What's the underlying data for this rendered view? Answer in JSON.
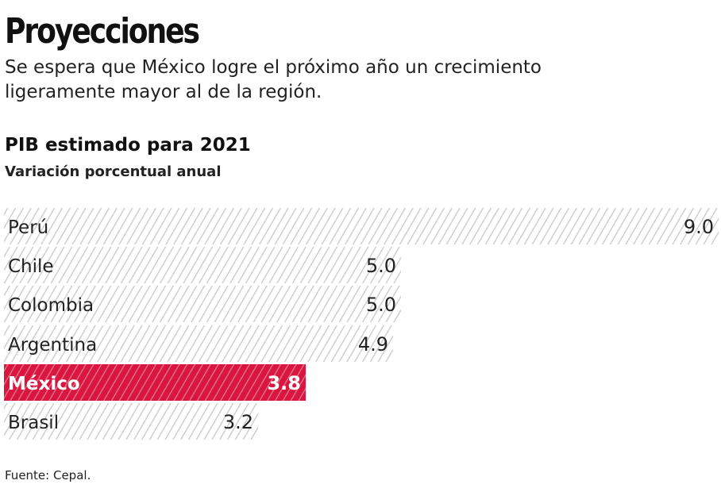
{
  "header": {
    "title": "Proyecciones",
    "subtitle": "Se espera que México logre el próximo año un crecimiento ligeramente mayor al de la región."
  },
  "chart_data": {
    "type": "bar",
    "orientation": "horizontal",
    "title": "PIB estimado para 2021",
    "subtitle": "Variación porcentual anual",
    "categories": [
      "Perú",
      "Chile",
      "Colombia",
      "Argentina",
      "México",
      "Brasil"
    ],
    "values": [
      9.0,
      5.0,
      5.0,
      4.9,
      3.8,
      3.2
    ],
    "value_labels": [
      "9.0",
      "5.0",
      "5.0",
      "4.9",
      "3.8",
      "3.2"
    ],
    "highlight": "México",
    "colors": {
      "bar": "#cfcfcf",
      "highlight": "#d9163f"
    },
    "xlim": [
      0,
      9
    ],
    "grid": false,
    "source": "Fuente: Cepal."
  }
}
